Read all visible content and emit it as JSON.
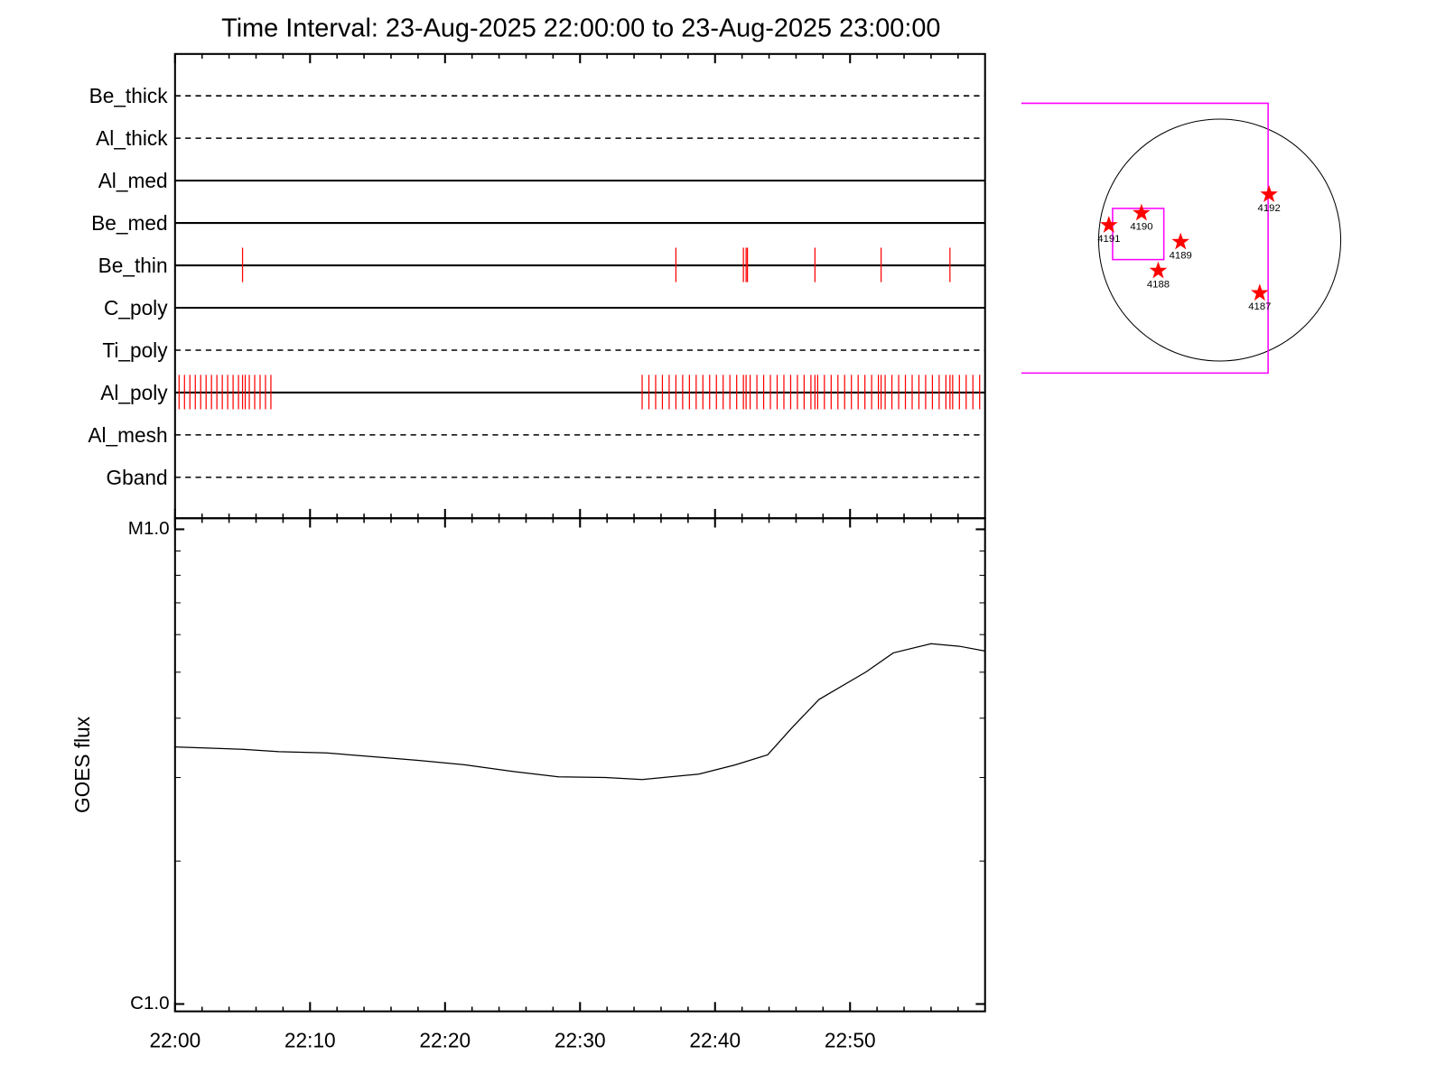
{
  "title": "Time Interval: 23-Aug-2025 22:00:00 to 23-Aug-2025 23:00:00",
  "chart_data": [
    {
      "type": "event",
      "xlim": [
        0,
        60
      ],
      "xticks": [
        0,
        10,
        20,
        30,
        40,
        50
      ],
      "minor_xticks": [
        2,
        4,
        6,
        8,
        12,
        14,
        16,
        18,
        22,
        24,
        26,
        28,
        32,
        34,
        36,
        38,
        42,
        44,
        46,
        48,
        52,
        54,
        56,
        58
      ],
      "event_color": "#ff0000",
      "rows": [
        {
          "name": "Be_thick",
          "style": "dashed",
          "events": []
        },
        {
          "name": "Al_thick",
          "style": "dashed",
          "events": []
        },
        {
          "name": "Al_med",
          "style": "solid",
          "events": []
        },
        {
          "name": "Be_med",
          "style": "solid",
          "events": []
        },
        {
          "name": "Be_thin",
          "style": "solid",
          "events": [
            5.0,
            37.1,
            42.1,
            42.3,
            42.4,
            47.4,
            52.3,
            57.4
          ]
        },
        {
          "name": "C_poly",
          "style": "solid",
          "events": []
        },
        {
          "name": "Ti_poly",
          "style": "dashed",
          "events": []
        },
        {
          "name": "Al_poly",
          "style": "solid",
          "events": [
            0.3,
            0.7,
            1.1,
            1.5,
            1.9,
            2.3,
            2.7,
            3.1,
            3.5,
            3.9,
            4.3,
            4.7,
            5.0,
            5.2,
            5.5,
            5.9,
            6.3,
            6.7,
            7.1,
            34.6,
            35.1,
            35.6,
            36.1,
            36.6,
            37.1,
            37.6,
            38.1,
            38.6,
            39.1,
            39.6,
            40.1,
            40.6,
            41.1,
            41.6,
            42.1,
            42.3,
            42.6,
            43.1,
            43.6,
            44.1,
            44.6,
            45.1,
            45.6,
            46.1,
            46.6,
            47.1,
            47.4,
            47.6,
            48.1,
            48.6,
            49.1,
            49.6,
            50.1,
            50.6,
            51.1,
            51.6,
            52.1,
            52.3,
            52.6,
            53.1,
            53.6,
            54.1,
            54.6,
            55.1,
            55.6,
            56.1,
            56.6,
            57.1,
            57.4,
            57.6,
            58.1,
            58.6,
            59.1,
            59.6
          ]
        },
        {
          "name": "Al_mesh",
          "style": "dashed",
          "events": []
        },
        {
          "name": "Gband",
          "style": "dashed",
          "events": []
        }
      ]
    },
    {
      "type": "line",
      "y_label": "GOES flux",
      "log_y": true,
      "color": "#000000",
      "xlim": [
        0,
        60
      ],
      "xticks": [
        {
          "value": 0,
          "label": "22:00"
        },
        {
          "value": 10,
          "label": "22:10"
        },
        {
          "value": 20,
          "label": "22:20"
        },
        {
          "value": 30,
          "label": "22:30"
        },
        {
          "value": 40,
          "label": "22:40"
        },
        {
          "value": 50,
          "label": "22:50"
        }
      ],
      "minor_xticks": [
        2,
        4,
        6,
        8,
        12,
        14,
        16,
        18,
        22,
        24,
        26,
        28,
        32,
        34,
        36,
        38,
        42,
        44,
        46,
        48,
        52,
        54,
        56,
        58
      ],
      "ylim": [
        9.65e-07,
        1.055e-05
      ],
      "yticks": [
        {
          "value": 1e-06,
          "label": "C1.0"
        },
        {
          "value": 1e-05,
          "label": "M1.0"
        }
      ],
      "minor_yticks": [
        2e-06,
        3e-06,
        4e-06,
        5e-06,
        6e-06,
        7e-06,
        8e-06,
        9e-06
      ],
      "x": [
        0,
        5,
        7.7,
        11.2,
        14.6,
        18,
        21.5,
        25,
        28.4,
        31.9,
        34.6,
        38.8,
        41.5,
        43.9,
        45.7,
        47.7,
        51.2,
        53.2,
        56,
        58.1,
        60
      ],
      "values": [
        3.48e-06,
        3.44e-06,
        3.4e-06,
        3.38e-06,
        3.32e-06,
        3.26e-06,
        3.19e-06,
        3.09e-06,
        3.01e-06,
        3e-06,
        2.97e-06,
        3.05e-06,
        3.19e-06,
        3.35e-06,
        3.82e-06,
        4.38e-06,
        5.01e-06,
        5.49e-06,
        5.74e-06,
        5.67e-06,
        5.54e-06
      ]
    }
  ],
  "solar_image": {
    "regions": [
      "4192",
      "4190",
      "4191",
      "4189",
      "4188",
      "4187"
    ],
    "star_color": "#ff0000",
    "box_color": "#ff00ff"
  }
}
